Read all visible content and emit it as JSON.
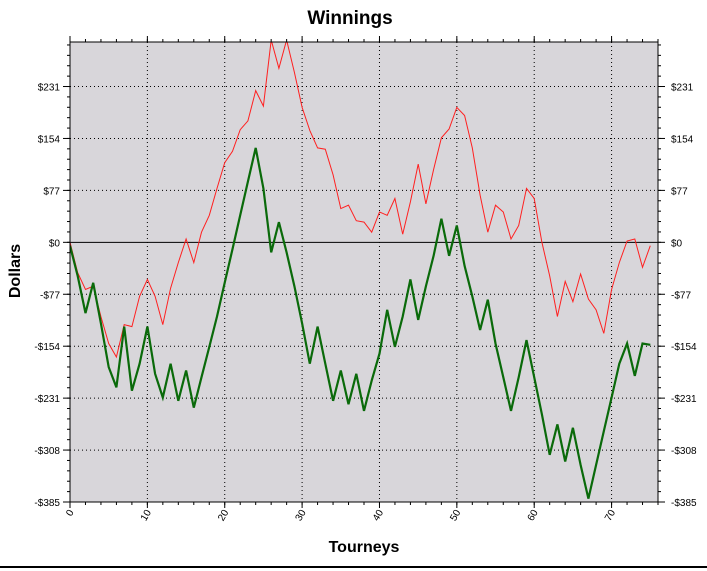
{
  "chart_data": {
    "type": "line",
    "title": "Winnings",
    "xlabel": "Tourneys",
    "ylabel": "Dollars",
    "xlim": [
      0,
      76
    ],
    "ylim": [
      -385,
      297
    ],
    "y_ticks": [
      -385,
      -308,
      -231,
      -154,
      -77,
      0,
      77,
      154,
      231
    ],
    "y_tick_labels": [
      "-$385",
      "-$308",
      "-$231",
      "-$154",
      "-$77",
      "$0",
      "$77",
      "$154",
      "$231"
    ],
    "x_ticks": [
      0,
      10,
      20,
      30,
      40,
      50,
      60,
      70
    ],
    "x_tick_labels": [
      "0",
      "10",
      "20",
      "30",
      "40",
      "50",
      "60",
      "70"
    ],
    "grid": true,
    "colors": {
      "plot_background": "#d8d6da",
      "series_red": "#ff2020",
      "series_green": "#0a6a0a",
      "zero_line": "#000000"
    },
    "series": [
      {
        "id": "red-series",
        "x": [
          0,
          1,
          2,
          3,
          4,
          5,
          6,
          7,
          8,
          9,
          10,
          11,
          12,
          13,
          14,
          15,
          16,
          17,
          18,
          19,
          20,
          21,
          22,
          23,
          24,
          25,
          26,
          27,
          28,
          29,
          30,
          31,
          32,
          33,
          34,
          35,
          36,
          37,
          38,
          39,
          40,
          41,
          42,
          43,
          44,
          45,
          46,
          47,
          48,
          49,
          50,
          51,
          52,
          53,
          54,
          55,
          56,
          57,
          58,
          59,
          60,
          61,
          62,
          63,
          64,
          65,
          66,
          67,
          68,
          69,
          70,
          71,
          72,
          73,
          74,
          75
        ],
        "values": [
          0,
          -45,
          -70,
          -65,
          -110,
          -150,
          -170,
          -122,
          -125,
          -80,
          -55,
          -80,
          -122,
          -68,
          -30,
          5,
          -30,
          15,
          40,
          80,
          118,
          135,
          167,
          180,
          225,
          202,
          300,
          258,
          300,
          252,
          200,
          166,
          140,
          138,
          100,
          50,
          55,
          32,
          30,
          15,
          45,
          40,
          65,
          12,
          60,
          116,
          57,
          108,
          155,
          168,
          200,
          188,
          140,
          70,
          15,
          55,
          45,
          5,
          25,
          80,
          65,
          0,
          -50,
          -110,
          -58,
          -88,
          -47,
          -84,
          -100,
          -135,
          -70,
          -30,
          2,
          5,
          -37,
          -5
        ]
      },
      {
        "id": "green-series",
        "x": [
          0,
          1,
          2,
          3,
          4,
          5,
          6,
          7,
          8,
          9,
          10,
          11,
          12,
          13,
          14,
          15,
          16,
          17,
          18,
          19,
          20,
          21,
          22,
          23,
          24,
          25,
          26,
          27,
          28,
          29,
          30,
          31,
          32,
          33,
          34,
          35,
          36,
          37,
          38,
          39,
          40,
          41,
          42,
          43,
          44,
          45,
          46,
          47,
          48,
          49,
          50,
          51,
          52,
          53,
          54,
          55,
          56,
          57,
          58,
          59,
          60,
          61,
          62,
          63,
          64,
          65,
          66,
          67,
          68,
          69,
          70,
          71,
          72,
          73,
          74,
          75
        ],
        "values": [
          -5,
          -50,
          -105,
          -60,
          -120,
          -185,
          -215,
          -125,
          -220,
          -180,
          -125,
          -195,
          -230,
          -180,
          -235,
          -190,
          -245,
          -200,
          -155,
          -110,
          -60,
          -10,
          40,
          90,
          140,
          80,
          -15,
          30,
          -15,
          -65,
          -120,
          -180,
          -125,
          -180,
          -235,
          -190,
          -240,
          -195,
          -250,
          -205,
          -165,
          -100,
          -155,
          -110,
          -55,
          -115,
          -65,
          -20,
          35,
          -20,
          25,
          -35,
          -80,
          -130,
          -85,
          -150,
          -200,
          -250,
          -200,
          -145,
          -200,
          -255,
          -315,
          -270,
          -325,
          -275,
          -330,
          -380,
          -330,
          -280,
          -230,
          -180,
          -150,
          -198,
          -150,
          -152
        ]
      }
    ]
  }
}
